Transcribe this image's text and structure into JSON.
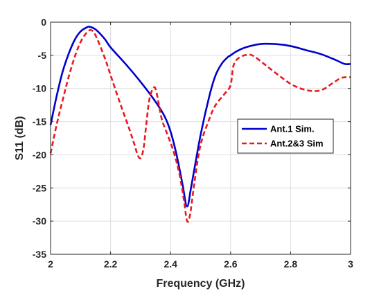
{
  "chart_data": {
    "type": "line",
    "title": "",
    "xlabel": "Frequency (GHz)",
    "ylabel": "S11 (dB)",
    "xlim": [
      2,
      3
    ],
    "ylim": [
      -35,
      0
    ],
    "xticks": [
      2,
      2.2,
      2.4,
      2.6,
      2.8,
      3
    ],
    "xtick_labels": [
      "2",
      "2.2",
      "2.4",
      "2.6",
      "2.8",
      "3"
    ],
    "yticks": [
      0,
      -5,
      -10,
      -15,
      -20,
      -25,
      -30,
      -35
    ],
    "ytick_labels": [
      "0",
      "-5",
      "-10",
      "-15",
      "-20",
      "-25",
      "-30",
      "-35"
    ],
    "grid": true,
    "legend_position": "right",
    "series": [
      {
        "name": "Ant.1 Sim.",
        "color": "#0000cc",
        "style": "solid",
        "x": [
          2.0,
          2.02,
          2.04,
          2.06,
          2.08,
          2.1,
          2.12,
          2.13,
          2.15,
          2.18,
          2.2,
          2.25,
          2.3,
          2.35,
          2.38,
          2.4,
          2.42,
          2.44,
          2.455,
          2.47,
          2.5,
          2.53,
          2.55,
          2.57,
          2.59,
          2.6,
          2.62,
          2.65,
          2.7,
          2.75,
          2.8,
          2.85,
          2.9,
          2.95,
          2.98,
          3.0
        ],
        "y": [
          -15.5,
          -11.2,
          -7.5,
          -4.8,
          -2.7,
          -1.4,
          -0.8,
          -0.7,
          -1.1,
          -2.5,
          -3.8,
          -6.3,
          -9.0,
          -12.0,
          -14.2,
          -16.5,
          -20.0,
          -24.5,
          -27.8,
          -24.5,
          -17.0,
          -11.0,
          -8.0,
          -6.3,
          -5.3,
          -5.0,
          -4.4,
          -3.8,
          -3.3,
          -3.3,
          -3.6,
          -4.2,
          -4.8,
          -5.7,
          -6.3,
          -6.3
        ]
      },
      {
        "name": "Ant.2&3 Sim",
        "color": "#e8191f",
        "style": "dashed",
        "x": [
          2.0,
          2.02,
          2.04,
          2.06,
          2.08,
          2.1,
          2.12,
          2.135,
          2.15,
          2.18,
          2.2,
          2.23,
          2.26,
          2.28,
          2.29,
          2.3,
          2.31,
          2.32,
          2.33,
          2.345,
          2.355,
          2.37,
          2.39,
          2.41,
          2.43,
          2.445,
          2.455,
          2.465,
          2.48,
          2.5,
          2.53,
          2.55,
          2.58,
          2.6,
          2.61,
          2.63,
          2.66,
          2.68,
          2.72,
          2.76,
          2.8,
          2.84,
          2.88,
          2.91,
          2.94,
          2.97,
          3.0
        ],
        "y": [
          -19.8,
          -15.5,
          -11.8,
          -8.3,
          -5.3,
          -3.0,
          -1.6,
          -1.2,
          -2.0,
          -5.3,
          -8.0,
          -12.0,
          -15.8,
          -18.5,
          -20.0,
          -20.5,
          -19.0,
          -15.0,
          -11.5,
          -9.8,
          -11.0,
          -14.5,
          -17.0,
          -19.5,
          -23.0,
          -27.0,
          -30.0,
          -29.0,
          -24.0,
          -18.5,
          -14.5,
          -12.5,
          -10.8,
          -9.5,
          -6.5,
          -5.3,
          -4.9,
          -5.2,
          -6.6,
          -8.0,
          -9.3,
          -10.1,
          -10.4,
          -10.1,
          -9.2,
          -8.4,
          -8.3
        ]
      }
    ]
  }
}
